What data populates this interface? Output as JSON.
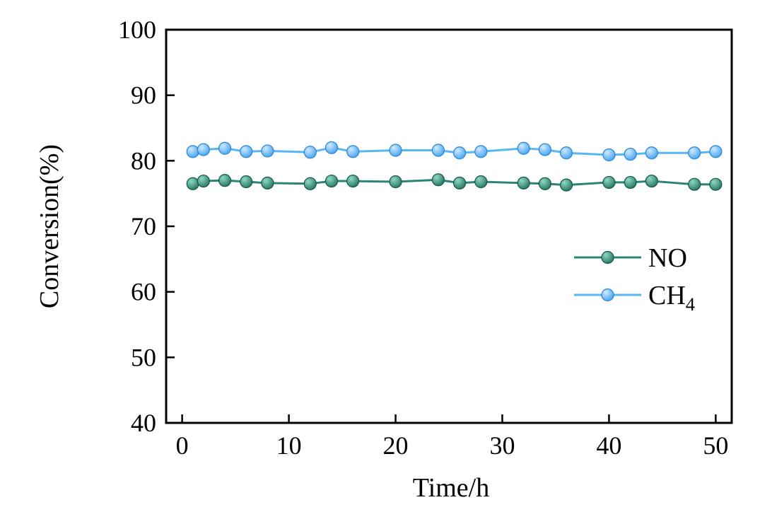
{
  "chart_data": {
    "type": "line",
    "title": "",
    "xlabel": "Time/h",
    "ylabel": "Conversion(%)",
    "xlim": [
      -1.5,
      51.5
    ],
    "ylim": [
      40,
      100
    ],
    "xticks": [
      0,
      10,
      20,
      30,
      40,
      50
    ],
    "yticks": [
      40,
      50,
      60,
      70,
      80,
      90,
      100
    ],
    "grid": false,
    "legend_position": "inside-right-middle",
    "frame_color": "#000000",
    "x": [
      1,
      2,
      4,
      6,
      8,
      12,
      14,
      16,
      20,
      24,
      26,
      28,
      32,
      34,
      36,
      40,
      42,
      44,
      48,
      50
    ],
    "series": [
      {
        "id": "no",
        "label": "NO",
        "label_sub": "",
        "line_color": "#2c8573",
        "marker_color": "#1f6f5c",
        "marker_edge": "#155948",
        "marker_highlight": "#8fd8c3",
        "values": [
          76.5,
          76.9,
          77.0,
          76.8,
          76.6,
          76.5,
          76.9,
          76.9,
          76.8,
          77.1,
          76.6,
          76.8,
          76.6,
          76.5,
          76.3,
          76.7,
          76.7,
          76.9,
          76.4,
          76.4
        ]
      },
      {
        "id": "ch4",
        "label": "CH",
        "label_sub": "4",
        "line_color": "#58b6f2",
        "marker_color": "#3d9ff0",
        "marker_edge": "#2b85d6",
        "marker_highlight": "#cfeaff",
        "values": [
          81.4,
          81.7,
          81.9,
          81.4,
          81.5,
          81.3,
          82.0,
          81.4,
          81.6,
          81.6,
          81.2,
          81.4,
          81.9,
          81.7,
          81.2,
          80.9,
          81.0,
          81.2,
          81.2,
          81.4
        ]
      }
    ]
  }
}
